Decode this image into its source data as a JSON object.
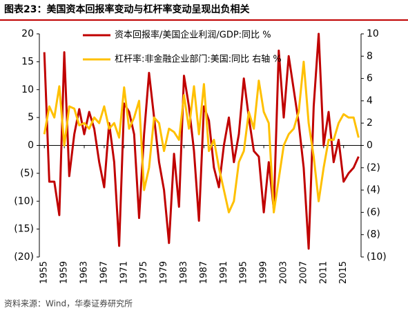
{
  "chart_data": {
    "type": "line",
    "title": "图表23：美国资本回报率变动与杠杆率变动呈现出负相关",
    "source": "资料来源：Wind，华泰证券研究所",
    "x": [
      1955,
      1956,
      1957,
      1958,
      1959,
      1960,
      1961,
      1962,
      1963,
      1964,
      1965,
      1966,
      1967,
      1968,
      1969,
      1970,
      1971,
      1972,
      1973,
      1974,
      1975,
      1976,
      1977,
      1978,
      1979,
      1980,
      1981,
      1982,
      1983,
      1984,
      1985,
      1986,
      1987,
      1988,
      1989,
      1990,
      1991,
      1992,
      1993,
      1994,
      1995,
      1996,
      1997,
      1998,
      1999,
      2000,
      2001,
      2002,
      2003,
      2004,
      2005,
      2006,
      2007,
      2008,
      2009,
      2010,
      2011,
      2012,
      2013,
      2014,
      2015,
      2016,
      2017,
      2018
    ],
    "xlim": [
      1954,
      2018.5
    ],
    "xticks": [
      1955,
      1959,
      1963,
      1967,
      1971,
      1975,
      1979,
      1983,
      1987,
      1991,
      1995,
      1999,
      2003,
      2007,
      2011,
      2015
    ],
    "ylim": [
      -20,
      20
    ],
    "yticks": [
      20,
      15,
      10,
      5,
      0,
      {
        "value": -5,
        "label": "(5)"
      },
      {
        "value": -10,
        "label": "(10)"
      },
      {
        "value": -15,
        "label": "(15)"
      },
      {
        "value": -20,
        "label": "(20)"
      }
    ],
    "y2lim": [
      -10,
      10
    ],
    "y2ticks": [
      10,
      8,
      6,
      4,
      2,
      0,
      {
        "value": -2,
        "label": "(2)"
      },
      {
        "value": -4,
        "label": "(4)"
      },
      {
        "value": -6,
        "label": "(6)"
      },
      {
        "value": -8,
        "label": "(8)"
      },
      {
        "value": -10,
        "label": "(10)"
      }
    ],
    "series": [
      {
        "name": "资本回报率/美国企业利润/GDP:同比 %",
        "color": "#c00000",
        "values": [
          16.7,
          -6.5,
          -6.5,
          -12.5,
          16.7,
          -5.5,
          2,
          6.5,
          2,
          6,
          3,
          -3,
          -7.5,
          4,
          -3,
          -18,
          7.5,
          6,
          2,
          -13,
          2,
          13,
          5,
          -3,
          -8,
          -17.5,
          -1.5,
          -11,
          12.5,
          7,
          -1,
          -13.5,
          7,
          4.5,
          -4,
          -7.5,
          0,
          5,
          -3,
          2,
          12,
          5,
          -1,
          -2,
          -12,
          -3,
          -11.5,
          17,
          5,
          16,
          10,
          4,
          -4,
          -18.5,
          7,
          20,
          0,
          6,
          -3,
          1,
          -6.5,
          -5,
          -4,
          -2
        ]
      },
      {
        "name": "杠杆率:非金融企业部门:美国:同比 右轴 %",
        "color": "#ffc000",
        "axis": "y2",
        "values": [
          1,
          3.5,
          2.5,
          5.3,
          0,
          3.5,
          3.3,
          1.8,
          2,
          1.5,
          2.5,
          2,
          3.5,
          1.5,
          2,
          0.7,
          5.2,
          1.5,
          2.5,
          4,
          -4,
          -2,
          2.5,
          2,
          -0.5,
          1.5,
          1.2,
          0.5,
          4.5,
          1.5,
          5.3,
          1,
          5.5,
          -0.5,
          0.5,
          -2,
          -4,
          -6,
          -5,
          -1.5,
          -0.5,
          3,
          1.5,
          5.8,
          3,
          2,
          -6,
          -3,
          0,
          1,
          1.5,
          3,
          7.5,
          2,
          -1,
          -5,
          -2,
          0.5,
          0.5,
          2,
          2.8,
          2.5,
          2.5,
          0.7
        ]
      }
    ]
  }
}
